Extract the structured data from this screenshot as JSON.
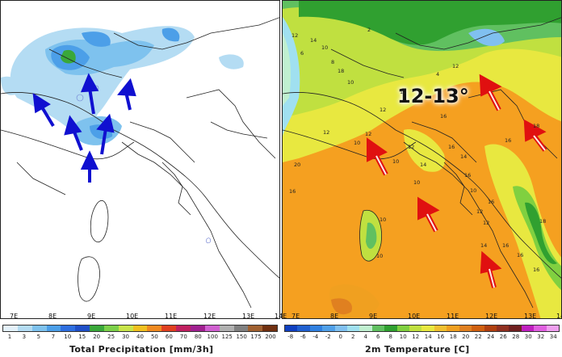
{
  "left_panel": {
    "longitude_labels": [
      "7E",
      "8E",
      "9E",
      "10E",
      "11E",
      "12E",
      "13E",
      "14E"
    ],
    "colorbar": {
      "ticks": [
        "1",
        "3",
        "5",
        "7",
        "10",
        "15",
        "20",
        "25",
        "30",
        "40",
        "50",
        "60",
        "70",
        "80",
        "100",
        "125",
        "150",
        "175",
        "200"
      ],
      "colors": [
        "#e4f2fb",
        "#b4dcf3",
        "#7ec2ee",
        "#4c9fe8",
        "#2f6fe0",
        "#2050c8",
        "#3aa83a",
        "#7cd04a",
        "#c8e44a",
        "#f0c020",
        "#f08a20",
        "#e04020",
        "#c02060",
        "#a02090",
        "#d060d0",
        "#b0b0b0",
        "#808080",
        "#a06030",
        "#703010"
      ],
      "title": "Total Precipitation [mm/3h]",
      "icon": "precipitation-colorbar"
    },
    "arrow_color": "#1010d0"
  },
  "right_panel": {
    "longitude_labels": [
      "7E",
      "8E",
      "9E",
      "10E",
      "11E",
      "12E",
      "13E",
      "14E"
    ],
    "highlight": "12-13°",
    "colorbar": {
      "ticks": [
        "-8",
        "-6",
        "-4",
        "-2",
        "0",
        "2",
        "4",
        "6",
        "8",
        "10",
        "12",
        "14",
        "16",
        "18",
        "20",
        "22",
        "24",
        "26",
        "28",
        "30",
        "32",
        "34"
      ],
      "colors": [
        "#1040c0",
        "#2060d0",
        "#3080e0",
        "#50a0e8",
        "#80c0f0",
        "#a0e0f0",
        "#c0f0d0",
        "#60c060",
        "#30a030",
        "#80d040",
        "#c0e040",
        "#e8e840",
        "#f0c030",
        "#f0a020",
        "#e08020",
        "#d06010",
        "#b04010",
        "#903020",
        "#702020",
        "#c020c0",
        "#e060e0",
        "#f0a0f0"
      ],
      "title": "2m Temperature [C]"
    },
    "temperature_values": [
      "2",
      "12",
      "14",
      "10",
      "6",
      "8",
      "18",
      "12",
      "4",
      "10",
      "12",
      "12",
      "16",
      "12",
      "12",
      "10",
      "16",
      "12",
      "14",
      "18",
      "16",
      "10",
      "16",
      "14",
      "10",
      "16",
      "10",
      "16",
      "12",
      "10",
      "12",
      "14",
      "10",
      "16",
      "18",
      "16",
      "16",
      "20"
    ],
    "arrow_color": "#e01010"
  }
}
